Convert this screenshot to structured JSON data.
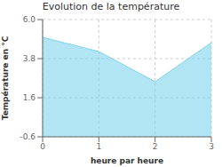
{
  "chart_data": {
    "type": "area",
    "title": "Evolution de la température",
    "xlabel": "heure par heure",
    "ylabel": "Température en °C",
    "x": [
      0,
      1,
      2,
      3
    ],
    "values": [
      5.0,
      4.2,
      2.5,
      4.7
    ],
    "xlim": [
      0,
      3
    ],
    "ylim": [
      -0.6,
      6.0
    ],
    "xticks": [
      0,
      1,
      2,
      3
    ],
    "yticks": [
      -0.6,
      1.6,
      3.8,
      {
        "value": 6.0,
        "label": "6.0"
      }
    ],
    "color": "#7dd4eb",
    "grid": true
  }
}
